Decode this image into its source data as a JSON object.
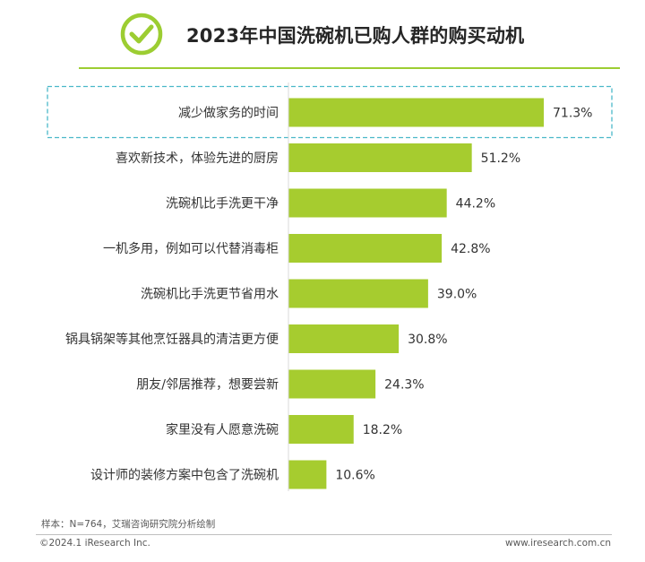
{
  "header": {
    "title": "2023年中国洗碗机已购人群的购买动机",
    "icon": "check-circle-icon",
    "accent_color": "#9ccd32"
  },
  "chart_data": {
    "type": "bar",
    "orientation": "horizontal",
    "categories": [
      "减少做家务的时间",
      "喜欢新技术，体验先进的厨房",
      "洗碗机比手洗更干净",
      "一机多用，例如可以代替消毒柜",
      "洗碗机比手洗更节省用水",
      "锅具锅架等其他烹饪器具的清洁更方便",
      "朋友/邻居推荐，想要尝新",
      "家里没有人愿意洗碗",
      "设计师的装修方案中包含了洗碗机"
    ],
    "values": [
      71.3,
      51.2,
      44.2,
      42.8,
      39.0,
      30.8,
      24.3,
      18.2,
      10.6
    ],
    "value_labels": [
      "71.3%",
      "51.2%",
      "44.2%",
      "42.8%",
      "39.0%",
      "30.8%",
      "24.3%",
      "18.2%",
      "10.6%"
    ],
    "unit": "%",
    "bar_color": "#a6cc2f",
    "highlight_color": "#4ab8c9",
    "highlighted_category": "减少做家务的时间",
    "grid": false,
    "legend": "none"
  },
  "footer": {
    "note": "样本：N=764，艾瑞咨询研究院分析绘制",
    "copyright": "©2024.1 iResearch Inc.",
    "site": "www.iresearch.com.cn"
  }
}
